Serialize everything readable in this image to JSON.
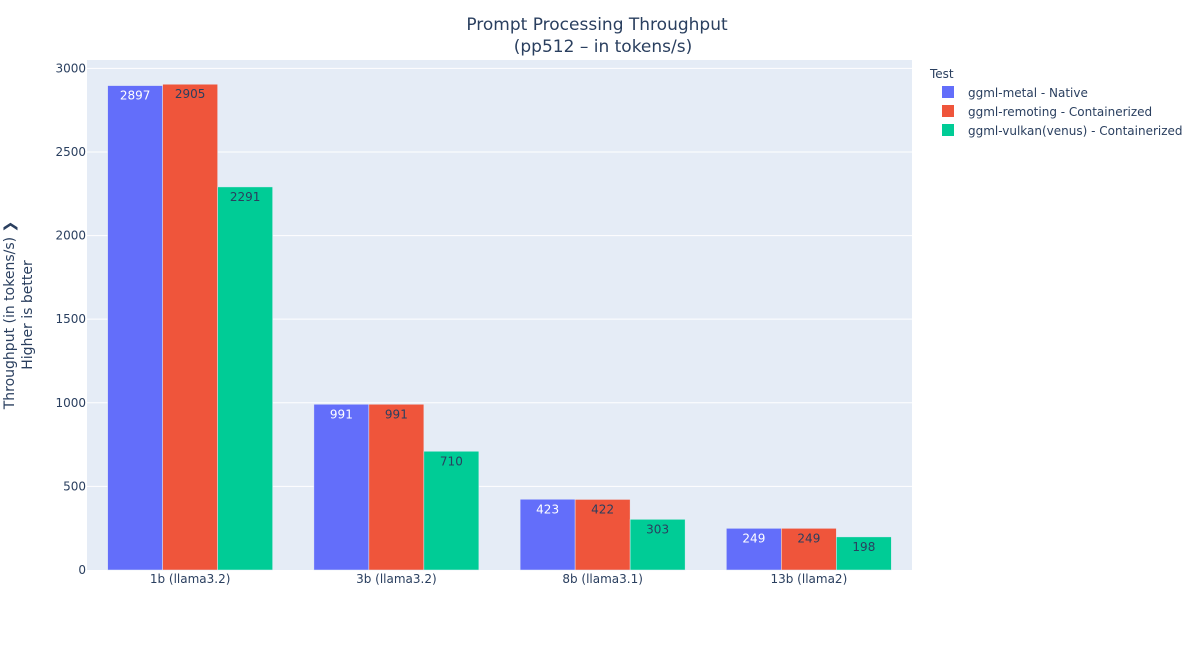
{
  "chart_data": {
    "type": "bar",
    "title": "Prompt Processing Throughput",
    "subtitle": "(pp512 – in tokens/s)",
    "ylabel": "Throughput (in tokens/s) ❯",
    "ylabel_sub": "Higher is better",
    "xlabel": "",
    "categories": [
      "1b (llama3.2)",
      "3b (llama3.2)",
      "8b (llama3.1)",
      "13b (llama2)"
    ],
    "series": [
      {
        "name": "ggml-metal - Native",
        "values": [
          2897,
          991,
          423,
          249
        ],
        "color": "#636efa",
        "label_color": "#ffffff"
      },
      {
        "name": "ggml-remoting - Containerized",
        "values": [
          2905,
          991,
          422,
          249
        ],
        "color": "#ef553b",
        "label_color": "#2a3f5f"
      },
      {
        "name": "ggml-vulkan(venus) - Containerized",
        "values": [
          2291,
          710,
          303,
          198
        ],
        "color": "#00cc96",
        "label_color": "#2a3f5f"
      }
    ],
    "ylim": [
      0,
      3050
    ],
    "yticks": [
      0,
      500,
      1000,
      1500,
      2000,
      2500,
      3000
    ],
    "grid": true,
    "legend_title": "Test",
    "legend_position": "right",
    "plot_bg": "#e5ecf6",
    "text_color": "#2a3f5f"
  }
}
